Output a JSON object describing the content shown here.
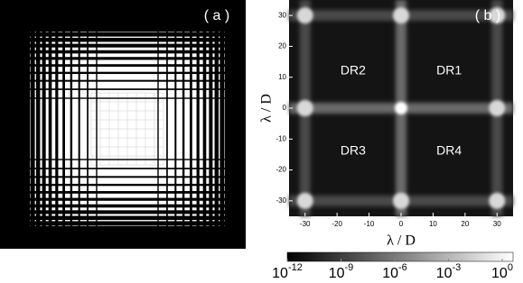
{
  "chart_data": [
    {
      "type": "image",
      "panel_label": "( a )"
    },
    {
      "type": "heatmap",
      "panel_label": "( b )",
      "xlabel": "λ / D",
      "ylabel": "λ / D",
      "xlim": [
        -35,
        35
      ],
      "ylim": [
        -35,
        35
      ],
      "xticks": [
        -30,
        -20,
        -10,
        0,
        10,
        20,
        30
      ],
      "yticks": [
        -30,
        -20,
        -10,
        0,
        10,
        20,
        30
      ],
      "annotations": [
        "DR1",
        "DR2",
        "DR3",
        "DR4"
      ],
      "colorbar": {
        "log_scale": true,
        "lim": [
          1e-12,
          1
        ],
        "ticks": [
          {
            "value": 1e-12,
            "label": "10",
            "exponent": "-12"
          },
          {
            "value": 1e-09,
            "label": "10",
            "exponent": "-9"
          },
          {
            "value": 1e-06,
            "label": "10",
            "exponent": "-6"
          },
          {
            "value": 0.001,
            "label": "10",
            "exponent": "-3"
          },
          {
            "value": 1,
            "label": "10",
            "exponent": "0"
          }
        ]
      }
    }
  ]
}
